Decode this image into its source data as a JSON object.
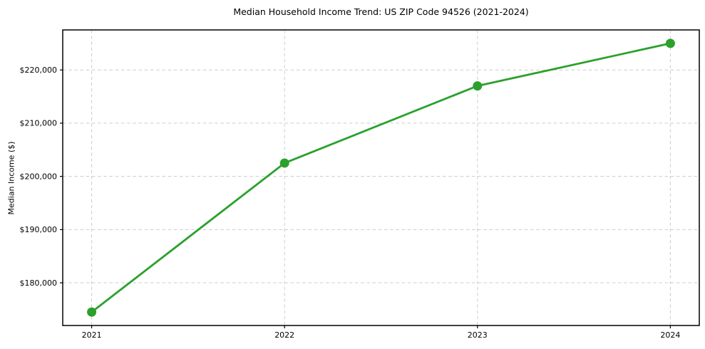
{
  "chart_data": {
    "type": "line",
    "title": "Median Household Income Trend: US ZIP Code 94526 (2021-2024)",
    "xlabel": "",
    "ylabel": "Median Income ($)",
    "x": [
      2021,
      2022,
      2023,
      2024
    ],
    "series": [
      {
        "name": "Median Household Income",
        "values": [
          174500,
          202500,
          217000,
          225000
        ]
      }
    ],
    "xtick_labels": [
      "2021",
      "2022",
      "2023",
      "2024"
    ],
    "ytick_values": [
      180000,
      190000,
      200000,
      210000,
      220000
    ],
    "ytick_labels": [
      "$180,000",
      "$190,000",
      "$200,000",
      "$210,000",
      "$220,000"
    ],
    "xlim": [
      2020.85,
      2024.15
    ],
    "ylim": [
      171975,
      227525
    ],
    "grid": true,
    "grid_style": "dashed",
    "legend_position": "none",
    "line_color": "#2ca02c",
    "marker": "circle",
    "grid_color": "#cccccc",
    "frame_color": "#000000",
    "background_color": "#ffffff"
  }
}
